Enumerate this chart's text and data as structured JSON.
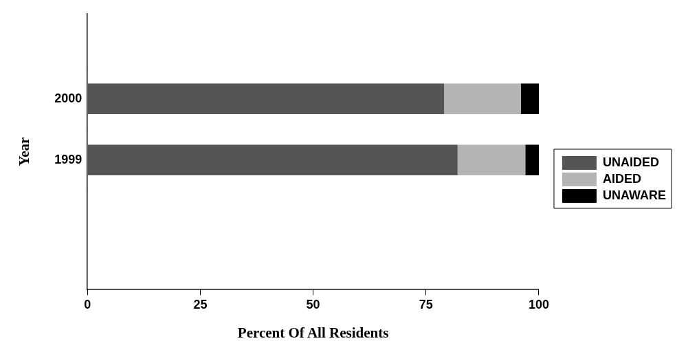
{
  "chart_data": {
    "type": "bar",
    "orientation": "horizontal",
    "stacked": true,
    "categories": [
      "2000",
      "1999"
    ],
    "series": [
      {
        "name": "UNAIDED",
        "color": "#555555",
        "values": [
          79,
          82
        ]
      },
      {
        "name": "AIDED",
        "color": "#b4b4b4",
        "values": [
          17,
          15
        ]
      },
      {
        "name": "UNAWARE",
        "color": "#000000",
        "values": [
          4,
          3
        ]
      }
    ],
    "xlim": [
      0,
      100
    ],
    "xticks": [
      0,
      25,
      50,
      75,
      100
    ],
    "xlabel": "Percent Of All Residents",
    "ylabel": "Year",
    "legend": "right",
    "grid": false
  }
}
